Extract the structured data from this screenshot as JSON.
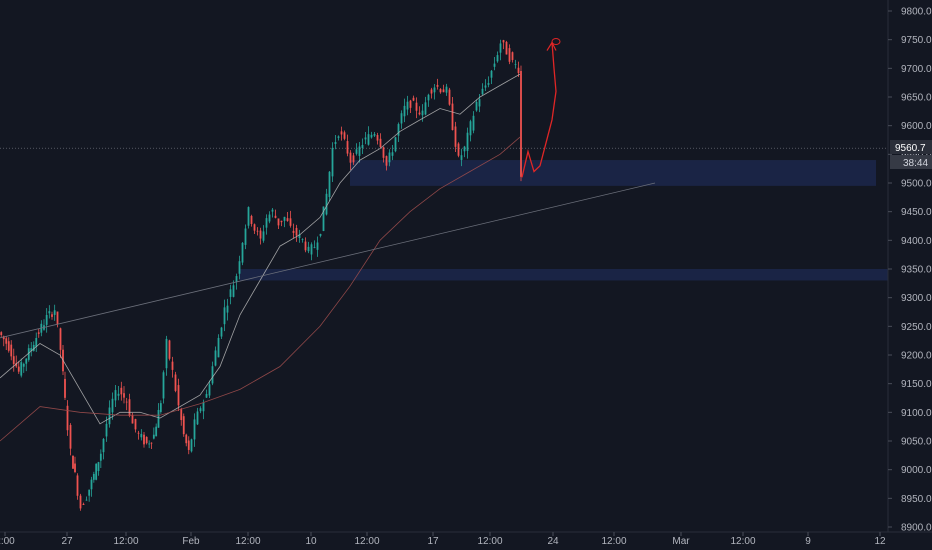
{
  "colors": {
    "background": "#131722",
    "up": "#26a69a",
    "down": "#ef5350",
    "zone": "#1e2a52",
    "ma_fast": "#b8b8b8",
    "ma_slow": "#9c4c4c",
    "trendline": "#6b6f7a",
    "drawing": "#e02626",
    "price_line": "#787b86"
  },
  "chart_data": {
    "type": "candlestick",
    "title": "",
    "xlabel": "",
    "ylabel": "",
    "ylim": [
      8895,
      9825
    ],
    "y_ticks": [
      8900,
      8950,
      9000,
      9050,
      9100,
      9150,
      9200,
      9250,
      9300,
      9350,
      9400,
      9450,
      9500,
      9550,
      9600,
      9650,
      9700,
      9750,
      9800
    ],
    "x_ticks": [
      "2:00",
      "27",
      "12:00",
      "Feb",
      "12:00",
      "10",
      "12:00",
      "17",
      "12:00",
      "24",
      "12:00",
      "Mar",
      "12:00",
      "9",
      "12"
    ],
    "current_price": "9560.7",
    "countdown": "38:44",
    "support_zones": [
      {
        "from": 9495,
        "to": 9540
      },
      {
        "from": 9330,
        "to": 9350
      }
    ],
    "trendline_points": [
      [
        0,
        9230
      ],
      [
        655,
        9500
      ]
    ],
    "price_path": [
      [
        0,
        9240
      ],
      [
        10,
        9215
      ],
      [
        20,
        9170
      ],
      [
        30,
        9205
      ],
      [
        40,
        9240
      ],
      [
        48,
        9265
      ],
      [
        56,
        9280
      ],
      [
        62,
        9210
      ],
      [
        66,
        9120
      ],
      [
        72,
        9030
      ],
      [
        76,
        8990
      ],
      [
        82,
        8935
      ],
      [
        88,
        8955
      ],
      [
        95,
        8990
      ],
      [
        102,
        9030
      ],
      [
        108,
        9080
      ],
      [
        114,
        9120
      ],
      [
        120,
        9140
      ],
      [
        128,
        9120
      ],
      [
        134,
        9080
      ],
      [
        140,
        9060
      ],
      [
        148,
        9045
      ],
      [
        155,
        9060
      ],
      [
        162,
        9120
      ],
      [
        168,
        9220
      ],
      [
        174,
        9170
      ],
      [
        180,
        9110
      ],
      [
        185,
        9060
      ],
      [
        190,
        9030
      ],
      [
        196,
        9080
      ],
      [
        202,
        9110
      ],
      [
        208,
        9130
      ],
      [
        214,
        9180
      ],
      [
        220,
        9230
      ],
      [
        226,
        9280
      ],
      [
        232,
        9310
      ],
      [
        238,
        9340
      ],
      [
        244,
        9400
      ],
      [
        250,
        9450
      ],
      [
        256,
        9420
      ],
      [
        262,
        9400
      ],
      [
        268,
        9440
      ],
      [
        274,
        9450
      ],
      [
        280,
        9430
      ],
      [
        286,
        9440
      ],
      [
        292,
        9420
      ],
      [
        298,
        9410
      ],
      [
        304,
        9400
      ],
      [
        310,
        9380
      ],
      [
        316,
        9390
      ],
      [
        322,
        9420
      ],
      [
        328,
        9480
      ],
      [
        334,
        9560
      ],
      [
        340,
        9590
      ],
      [
        346,
        9570
      ],
      [
        352,
        9540
      ],
      [
        358,
        9550
      ],
      [
        364,
        9570
      ],
      [
        370,
        9580
      ],
      [
        376,
        9590
      ],
      [
        382,
        9570
      ],
      [
        388,
        9530
      ],
      [
        394,
        9560
      ],
      [
        400,
        9600
      ],
      [
        406,
        9630
      ],
      [
        412,
        9640
      ],
      [
        418,
        9630
      ],
      [
        424,
        9620
      ],
      [
        430,
        9660
      ],
      [
        436,
        9670
      ],
      [
        442,
        9665
      ],
      [
        448,
        9660
      ],
      [
        454,
        9600
      ],
      [
        460,
        9540
      ],
      [
        466,
        9560
      ],
      [
        472,
        9600
      ],
      [
        478,
        9640
      ],
      [
        484,
        9660
      ],
      [
        490,
        9680
      ],
      [
        496,
        9710
      ],
      [
        502,
        9745
      ],
      [
        508,
        9730
      ],
      [
        514,
        9710
      ],
      [
        520,
        9700
      ],
      [
        522,
        9510
      ]
    ],
    "ma_fast_points": [
      [
        0,
        9160
      ],
      [
        20,
        9190
      ],
      [
        40,
        9220
      ],
      [
        60,
        9200
      ],
      [
        80,
        9140
      ],
      [
        100,
        9080
      ],
      [
        120,
        9100
      ],
      [
        140,
        9100
      ],
      [
        160,
        9090
      ],
      [
        180,
        9110
      ],
      [
        200,
        9130
      ],
      [
        220,
        9180
      ],
      [
        240,
        9270
      ],
      [
        260,
        9330
      ],
      [
        280,
        9390
      ],
      [
        300,
        9410
      ],
      [
        320,
        9440
      ],
      [
        340,
        9500
      ],
      [
        360,
        9540
      ],
      [
        380,
        9560
      ],
      [
        400,
        9590
      ],
      [
        420,
        9610
      ],
      [
        440,
        9630
      ],
      [
        460,
        9620
      ],
      [
        480,
        9650
      ],
      [
        500,
        9670
      ],
      [
        520,
        9690
      ]
    ],
    "ma_slow_points": [
      [
        0,
        9050
      ],
      [
        40,
        9110
      ],
      [
        80,
        9100
      ],
      [
        120,
        9095
      ],
      [
        160,
        9095
      ],
      [
        200,
        9115
      ],
      [
        240,
        9140
      ],
      [
        280,
        9180
      ],
      [
        320,
        9250
      ],
      [
        350,
        9320
      ],
      [
        380,
        9400
      ],
      [
        410,
        9450
      ],
      [
        440,
        9490
      ],
      [
        470,
        9520
      ],
      [
        500,
        9550
      ],
      [
        520,
        9580
      ]
    ],
    "projection_path": [
      [
        522,
        9510
      ],
      [
        528,
        9555
      ],
      [
        534,
        9520
      ],
      [
        540,
        9530
      ],
      [
        546,
        9570
      ],
      [
        552,
        9610
      ],
      [
        556,
        9660
      ],
      [
        554,
        9700
      ],
      [
        552,
        9745
      ]
    ]
  }
}
